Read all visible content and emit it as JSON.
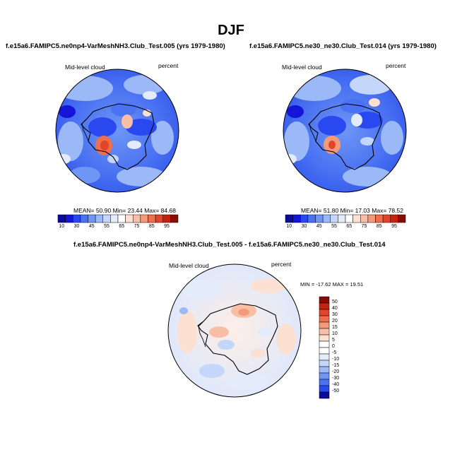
{
  "page_title": "DJF",
  "panels": [
    {
      "case_title": "f.e15a6.FAMIPC5.ne0np4-VarMeshNH3.Club_Test.005 (yrs 1979-1980)",
      "left_label": "Mid-level cloud",
      "right_label": "percent",
      "stats": {
        "mean_label": "MEAN=",
        "mean": "50.90",
        "min_label": "Min=",
        "min": "23.44",
        "max_label": "Max=",
        "max": "84.68"
      }
    },
    {
      "case_title": "f.e15a6.FAMIPC5.ne30_ne30.Club_Test.014 (yrs 1979-1980)",
      "left_label": "Mid-level cloud",
      "right_label": "percent",
      "stats": {
        "mean_label": "MEAN=",
        "mean": "51.80",
        "min_label": "Min=",
        "min": "17.03",
        "max_label": "Max=",
        "max": "78.52"
      }
    },
    {
      "case_title": "f.e15a6.FAMIPC5.ne0np4-VarMeshNH3.Club_Test.005 - f.e15a6.FAMIPC5.ne30_ne30.Club_Test.014",
      "left_label": "Mid-level cloud",
      "right_label": "percent",
      "minmax_text": "MIN = -17.62 MAX =  19.51"
    }
  ],
  "colorbar_abs": {
    "ticks": [
      "10",
      "30",
      "45",
      "55",
      "65",
      "75",
      "85",
      "95"
    ],
    "colors": [
      "#0c0c9a",
      "#1515d8",
      "#2a48f0",
      "#4a72f2",
      "#6f96f4",
      "#9bb9f6",
      "#c4d6fa",
      "#e4ecfc",
      "#ffffff",
      "#fce0d2",
      "#f8bfa6",
      "#f49a7a",
      "#ee6e4e",
      "#e0452a",
      "#c4240e",
      "#8a0c04"
    ]
  },
  "colorbar_diff": {
    "ticks": [
      "50",
      "40",
      "30",
      "20",
      "15",
      "10",
      "5",
      "0",
      "-5",
      "-10",
      "-15",
      "-20",
      "-30",
      "-40",
      "-50"
    ],
    "colors": [
      "#8a0c04",
      "#c4240e",
      "#e0452a",
      "#ee6e4e",
      "#f49a7a",
      "#f8bfa6",
      "#fce0d2",
      "#ffffff",
      "#ffffff",
      "#e4ecfc",
      "#c4d6fa",
      "#9bb9f6",
      "#6f96f4",
      "#4a72f2",
      "#2a48f0",
      "#0c0c9a"
    ]
  },
  "chart_data": [
    {
      "type": "heatmap",
      "title": "Mid-level cloud",
      "units": "percent",
      "projection": "south polar stereographic",
      "season": "DJF",
      "mean": 50.9,
      "min": 23.44,
      "max": 84.68,
      "contour_levels": [
        10,
        15,
        20,
        25,
        30,
        35,
        40,
        45,
        50,
        55,
        60,
        65,
        70,
        75,
        80,
        85,
        90,
        95
      ]
    },
    {
      "type": "heatmap",
      "title": "Mid-level cloud",
      "units": "percent",
      "projection": "south polar stereographic",
      "season": "DJF",
      "mean": 51.8,
      "min": 17.03,
      "max": 78.52,
      "contour_levels": [
        10,
        15,
        20,
        25,
        30,
        35,
        40,
        45,
        50,
        55,
        60,
        65,
        70,
        75,
        80,
        85,
        90,
        95
      ]
    },
    {
      "type": "heatmap",
      "title": "Mid-level cloud difference",
      "units": "percent",
      "projection": "south polar stereographic",
      "season": "DJF",
      "min": -17.62,
      "max": 19.51,
      "contour_levels": [
        -50,
        -40,
        -30,
        -20,
        -15,
        -10,
        -5,
        0,
        5,
        10,
        15,
        20,
        30,
        40,
        50
      ]
    }
  ]
}
